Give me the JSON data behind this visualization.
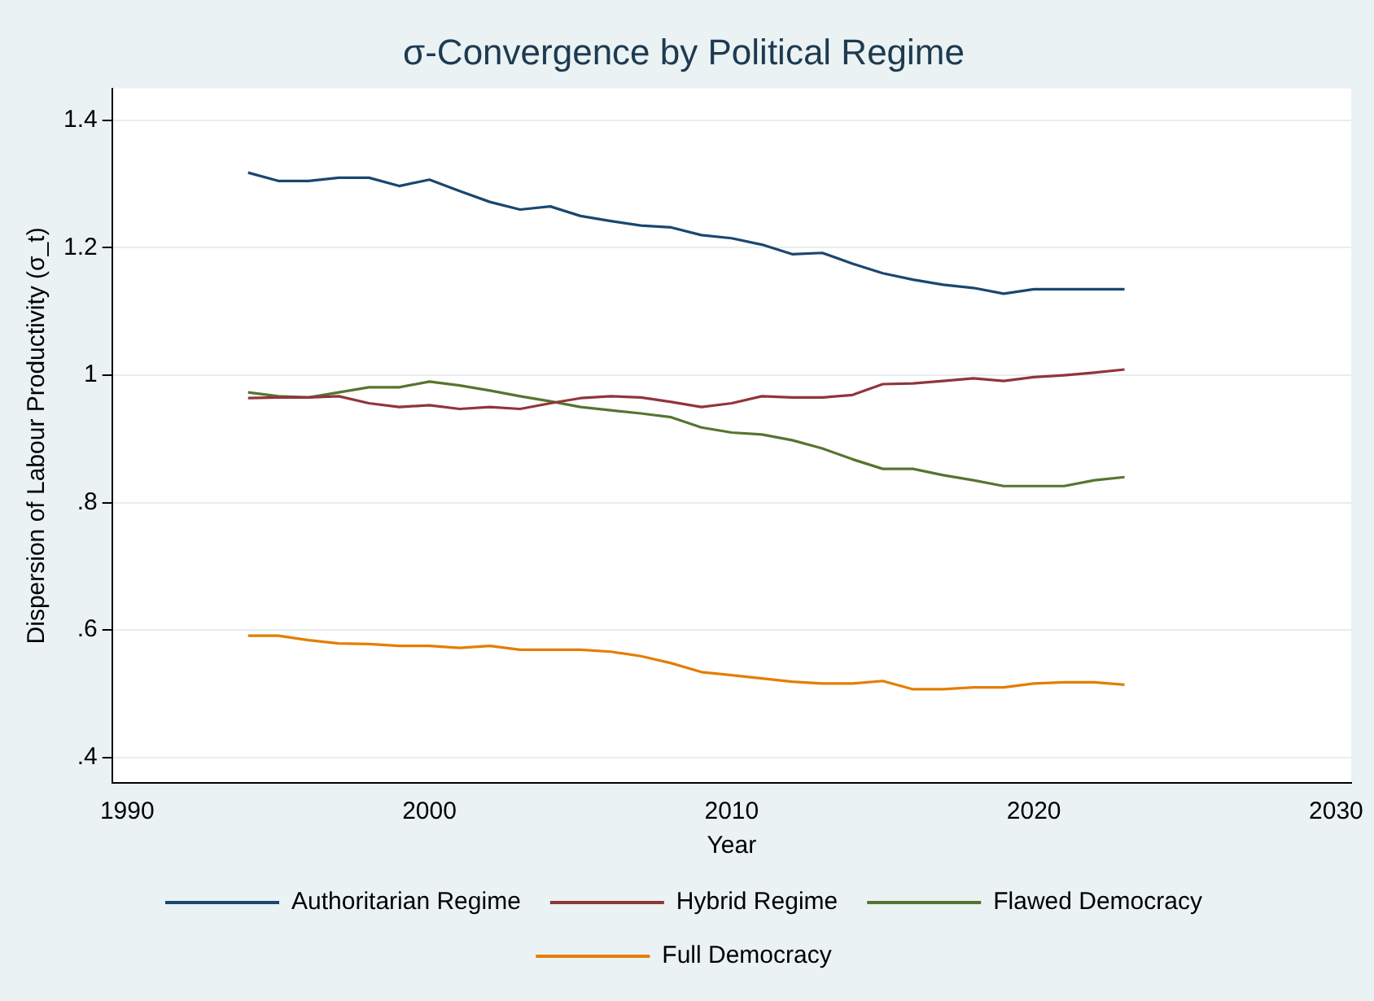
{
  "chart_data": {
    "type": "line",
    "title": "σ-Convergence by Political Regime",
    "xlabel": "Year",
    "ylabel": "Dispersion of Labour Productivity (σ_t)",
    "x": [
      1994,
      1995,
      1996,
      1997,
      1998,
      1999,
      2000,
      2001,
      2002,
      2003,
      2004,
      2005,
      2006,
      2007,
      2008,
      2009,
      2010,
      2011,
      2012,
      2013,
      2014,
      2015,
      2016,
      2017,
      2018,
      2019,
      2020,
      2021,
      2022,
      2023
    ],
    "series": [
      {
        "name": "Authoritarian Regime",
        "color": "#1a476f",
        "values": [
          1.318,
          1.305,
          1.305,
          1.31,
          1.31,
          1.297,
          1.307,
          1.289,
          1.272,
          1.26,
          1.265,
          1.25,
          1.242,
          1.235,
          1.232,
          1.22,
          1.215,
          1.205,
          1.19,
          1.192,
          1.175,
          1.16,
          1.15,
          1.142,
          1.137,
          1.128,
          1.135,
          1.135,
          1.135,
          1.135
        ]
      },
      {
        "name": "Hybrid Regime",
        "color": "#90353b",
        "values": [
          0.964,
          0.965,
          0.965,
          0.967,
          0.956,
          0.95,
          0.953,
          0.947,
          0.95,
          0.947,
          0.956,
          0.964,
          0.967,
          0.965,
          0.958,
          0.95,
          0.956,
          0.967,
          0.965,
          0.965,
          0.969,
          0.986,
          0.987,
          0.991,
          0.995,
          0.991,
          0.997,
          1.0,
          1.004,
          1.009
        ]
      },
      {
        "name": "Flawed Democracy",
        "color": "#55752f",
        "values": [
          0.973,
          0.967,
          0.965,
          0.973,
          0.981,
          0.981,
          0.99,
          0.984,
          0.976,
          0.967,
          0.959,
          0.95,
          0.945,
          0.94,
          0.934,
          0.918,
          0.91,
          0.907,
          0.898,
          0.885,
          0.868,
          0.853,
          0.853,
          0.843,
          0.835,
          0.826,
          0.826,
          0.826,
          0.835,
          0.84
        ]
      },
      {
        "name": "Full Democracy",
        "color": "#e37e00",
        "values": [
          0.591,
          0.591,
          0.584,
          0.579,
          0.578,
          0.575,
          0.575,
          0.572,
          0.575,
          0.569,
          0.569,
          0.569,
          0.566,
          0.559,
          0.548,
          0.534,
          0.529,
          0.524,
          0.519,
          0.516,
          0.516,
          0.52,
          0.507,
          0.507,
          0.51,
          0.51,
          0.516,
          0.518,
          0.518,
          0.514
        ]
      }
    ],
    "xlim": [
      1989.5,
      2030.5
    ],
    "xticks": [
      1990,
      2000,
      2010,
      2020,
      2030
    ],
    "ylim": [
      0.36,
      1.45
    ],
    "yticks": [
      {
        "value": 0.4,
        "label": ".4"
      },
      {
        "value": 0.6,
        "label": ".6"
      },
      {
        "value": 0.8,
        "label": ".8"
      },
      1,
      1.2,
      {
        "value": 1.4,
        "label": "1.4"
      }
    ],
    "grid": "y",
    "legend": "bottom",
    "marker": "none",
    "line_style": "solid"
  }
}
